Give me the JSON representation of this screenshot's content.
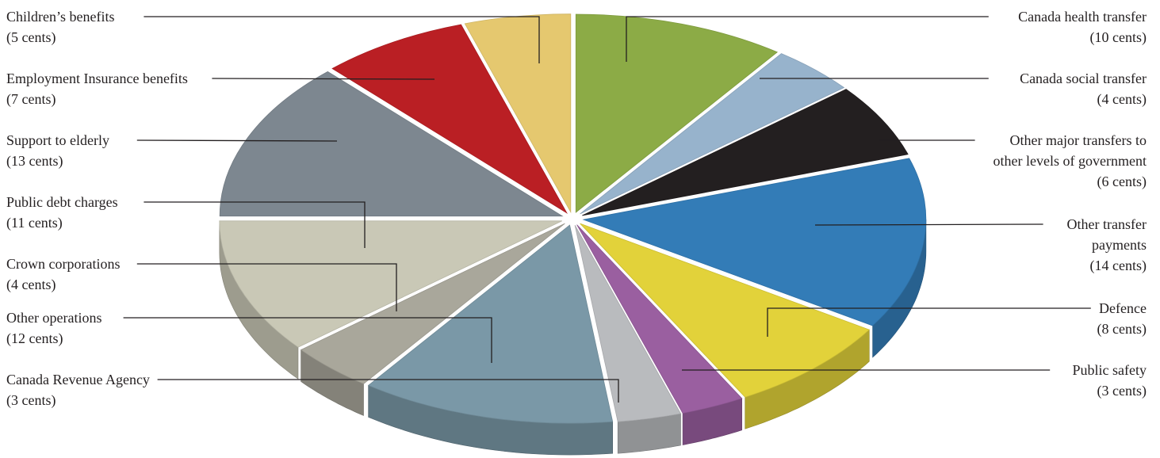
{
  "chart_data": {
    "type": "pie",
    "title": "",
    "units": "cents",
    "slices": [
      {
        "name": "Canada health transfer",
        "value": 10,
        "value_label": "(10 cents)",
        "color": "#8cab46",
        "side": "right"
      },
      {
        "name": "Canada social transfer",
        "value": 4,
        "value_label": "(4 cents)",
        "color": "#97b3cc",
        "side": "right"
      },
      {
        "name": "Other major transfers to other levels of government",
        "value": 6,
        "value_label": "(6 cents)",
        "color": "#231f20",
        "side": "right"
      },
      {
        "name": "Other transfer payments",
        "value": 14,
        "value_label": "(14 cents)",
        "color": "#337cb7",
        "side": "right"
      },
      {
        "name": "Defence",
        "value": 8,
        "value_label": "(8 cents)",
        "color": "#e2d23a",
        "side": "right"
      },
      {
        "name": "Public safety",
        "value": 3,
        "value_label": "(3 cents)",
        "color": "#9a5fa0",
        "side": "right"
      },
      {
        "name": "Canada Revenue Agency",
        "value": 3,
        "value_label": "(3 cents)",
        "color": "#b9bbbe",
        "side": "left"
      },
      {
        "name": "Other operations",
        "value": 12,
        "value_label": "(12 cents)",
        "color": "#7a98a7",
        "side": "left"
      },
      {
        "name": "Crown corporations",
        "value": 4,
        "value_label": "(4 cents)",
        "color": "#a9a79b",
        "side": "left"
      },
      {
        "name": "Public debt charges",
        "value": 11,
        "value_label": "(11 cents)",
        "color": "#c9c8b6",
        "side": "left"
      },
      {
        "name": "Support to elderly",
        "value": 13,
        "value_label": "(13 cents)",
        "color": "#7d8790",
        "side": "left"
      },
      {
        "name": "Employment Insurance benefits",
        "value": 7,
        "value_label": "(7 cents)",
        "color": "#ba1f24",
        "side": "left"
      },
      {
        "name": "Children’s benefits",
        "value": 5,
        "value_label": "(5 cents)",
        "color": "#e5c86f",
        "side": "left"
      }
    ],
    "labels": {
      "Canada health transfer": [
        "Canada health transfer"
      ],
      "Canada social transfer": [
        "Canada social transfer"
      ],
      "Other major transfers to other levels of government": [
        "Other major transfers to",
        "other levels of government"
      ],
      "Other transfer payments": [
        "Other transfer",
        "payments"
      ],
      "Defence": [
        "Defence"
      ],
      "Public safety": [
        "Public safety"
      ],
      "Canada Revenue Agency": [
        "Canada Revenue Agency"
      ],
      "Other operations": [
        "Other operations"
      ],
      "Crown corporations": [
        "Crown corporations"
      ],
      "Public debt charges": [
        "Public debt charges"
      ],
      "Support to elderly": [
        "Support to elderly"
      ],
      "Employment Insurance benefits": [
        "Employment Insurance benefits"
      ],
      "Children’s benefits": [
        "Children’s benefits"
      ]
    },
    "legend": "none",
    "style": "3d-exploded"
  }
}
